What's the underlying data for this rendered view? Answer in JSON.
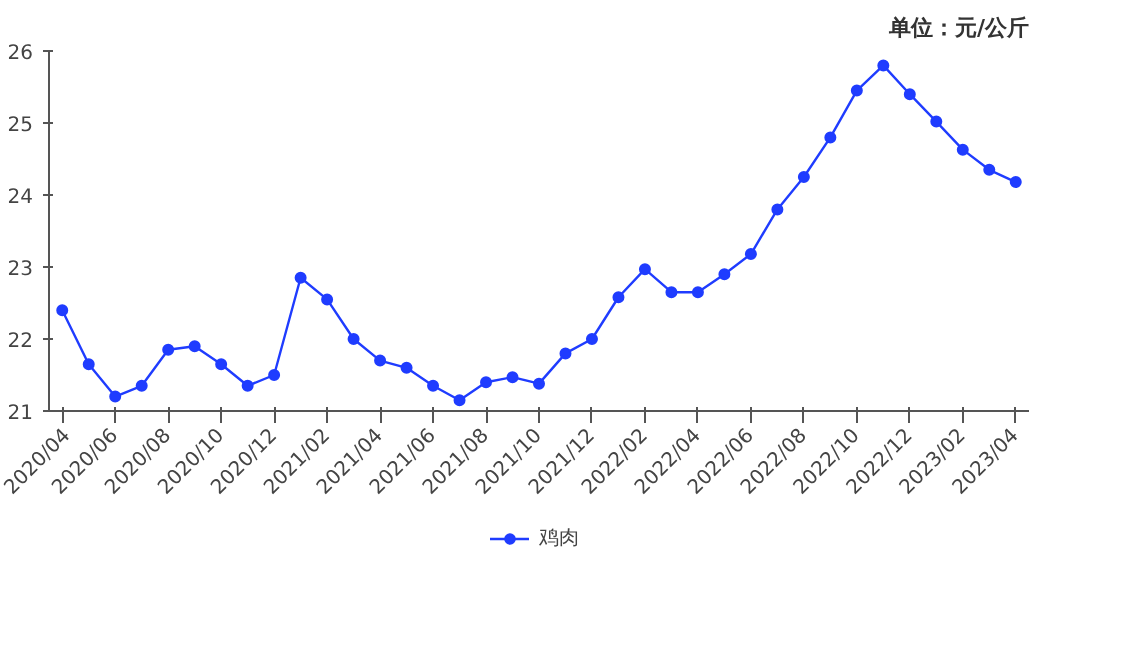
{
  "chart_data": {
    "type": "line",
    "annotations": [
      "单位：元/公斤"
    ],
    "categories": [
      "2020/04",
      null,
      "2020/06",
      null,
      "2020/08",
      null,
      "2020/10",
      null,
      "2020/12",
      null,
      "2021/02",
      null,
      "2021/04",
      null,
      "2021/06",
      null,
      "2021/08",
      null,
      "2021/10",
      null,
      "2021/12",
      null,
      "2022/02",
      null,
      "2022/04",
      null,
      "2022/06",
      null,
      "2022/08",
      null,
      "2022/10",
      null,
      "2022/12",
      null,
      "2023/02",
      null,
      "2023/04"
    ],
    "series": [
      {
        "name": "鸡肉",
        "color": "#1f3cff",
        "values": [
          22.4,
          21.65,
          21.2,
          21.35,
          21.85,
          21.9,
          21.65,
          21.35,
          21.5,
          22.85,
          22.55,
          22.0,
          21.7,
          21.6,
          21.35,
          21.15,
          21.4,
          21.47,
          21.38,
          21.8,
          22.0,
          22.58,
          22.97,
          22.65,
          22.65,
          22.9,
          23.18,
          23.8,
          24.25,
          24.8,
          25.45,
          25.8,
          25.4,
          25.02,
          24.63,
          24.35,
          24.18
        ]
      }
    ],
    "ylim": [
      21,
      26
    ],
    "yticks": [
      21,
      22,
      23,
      24,
      25,
      26
    ],
    "grid": false,
    "legend": "bottom",
    "marker": "circle",
    "line_style": "solid"
  }
}
